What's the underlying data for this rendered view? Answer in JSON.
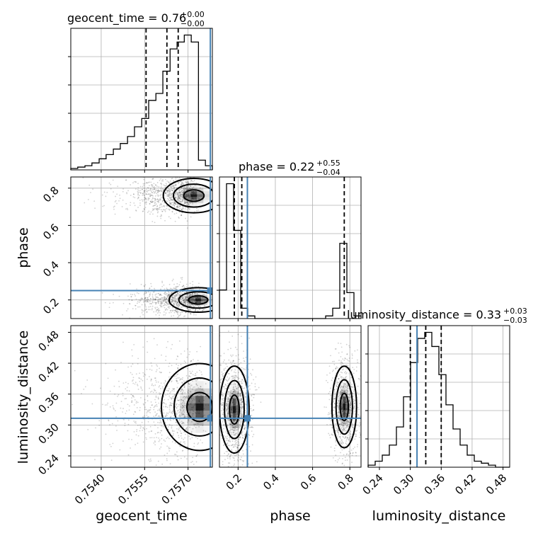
{
  "chart_data": {
    "type": "corner",
    "parameters": [
      "geocent_time",
      "phase",
      "luminosity_distance"
    ],
    "truths": {
      "geocent_time": 0.75777,
      "phase": 0.25,
      "luminosity_distance": 0.313
    },
    "truth_color": "#4682b4",
    "grid": true,
    "titles": [
      {
        "main": "geocent_time = 0.76",
        "upper": "+0.00",
        "lower": "−0.00"
      },
      {
        "main": "phase = 0.22",
        "upper": "+0.55",
        "lower": "−0.04"
      },
      {
        "main": "luminosity_distance = 0.33",
        "upper": "+0.03",
        "lower": "−0.03"
      }
    ],
    "axis_labels": {
      "geocent_time": "geocent_time",
      "phase": "phase",
      "luminosity_distance": "luminosity_distance"
    },
    "ranges": {
      "geocent_time": [
        0.75295,
        0.75784
      ],
      "phase": [
        0.1,
        0.86
      ],
      "luminosity_distance": [
        0.218,
        0.493
      ]
    },
    "ticks": {
      "geocent_time": {
        "values": [
          0.754,
          0.7555,
          0.757
        ],
        "labels": [
          "0.7540",
          "0.7555",
          "0.7570"
        ]
      },
      "phase": {
        "values": [
          0.2,
          0.4,
          0.6,
          0.8
        ],
        "labels": [
          "0.2",
          "0.4",
          "0.6",
          "0.8"
        ]
      },
      "luminosity_distance": {
        "values": [
          0.24,
          0.3,
          0.36,
          0.42,
          0.48
        ],
        "labels": [
          "0.24",
          "0.30",
          "0.36",
          "0.42",
          "0.48"
        ]
      }
    },
    "quantiles": {
      "geocent_time": [
        0.75555,
        0.75627,
        0.75666
      ],
      "phase": [
        0.18,
        0.22,
        0.77
      ],
      "luminosity_distance": [
        0.3,
        0.33,
        0.36
      ]
    },
    "histograms": {
      "geocent_time": {
        "bin_edges": [
          0.75295,
          0.75319,
          0.75344,
          0.75368,
          0.75393,
          0.75417,
          0.75442,
          0.75466,
          0.75491,
          0.75515,
          0.7554,
          0.75564,
          0.75589,
          0.75613,
          0.75638,
          0.75662,
          0.75687,
          0.75711,
          0.75736,
          0.7576,
          0.75784
        ],
        "counts": [
          1,
          2,
          3,
          5,
          8,
          11,
          15,
          19,
          24,
          31,
          37,
          50,
          55,
          71,
          87,
          92,
          97,
          92,
          7,
          3
        ]
      },
      "phase": {
        "bin_edges": [
          0.1,
          0.138,
          0.176,
          0.214,
          0.252,
          0.29,
          0.328,
          0.366,
          0.404,
          0.442,
          0.48,
          0.518,
          0.556,
          0.594,
          0.632,
          0.67,
          0.708,
          0.746,
          0.784,
          0.822,
          0.86
        ],
        "counts": [
          11,
          52,
          34,
          4,
          1,
          0,
          0,
          0,
          0,
          0,
          0,
          0,
          0,
          0,
          0,
          1,
          4,
          29,
          10,
          1
        ]
      },
      "luminosity_distance": {
        "bin_edges": [
          0.218,
          0.23175,
          0.2455,
          0.25925,
          0.273,
          0.28675,
          0.3005,
          0.31425,
          0.328,
          0.34175,
          0.3555,
          0.36925,
          0.383,
          0.39675,
          0.4105,
          0.42425,
          0.438,
          0.45175,
          0.4655,
          0.47925,
          0.493
        ],
        "counts": [
          1,
          3,
          6,
          11,
          20,
          35,
          52,
          64,
          67,
          60,
          46,
          31,
          19,
          11,
          6,
          3,
          2,
          1,
          0,
          0
        ]
      }
    },
    "density_modes": {
      "geocent_time_vs_phase": [
        {
          "x": 0.75735,
          "y": 0.2,
          "sx": 0.00038,
          "sy": 0.025
        },
        {
          "x": 0.7572,
          "y": 0.76,
          "sx": 0.0004,
          "sy": 0.035
        }
      ],
      "geocent_time_vs_luminosity_distance": [
        {
          "x": 0.7574,
          "y": 0.335,
          "sx": 0.0005,
          "sy": 0.032
        }
      ],
      "phase_vs_luminosity_distance": [
        {
          "x": 0.18,
          "y": 0.33,
          "sx": 0.03,
          "sy": 0.032
        },
        {
          "x": 0.77,
          "y": 0.335,
          "sx": 0.025,
          "sy": 0.03
        }
      ]
    }
  }
}
